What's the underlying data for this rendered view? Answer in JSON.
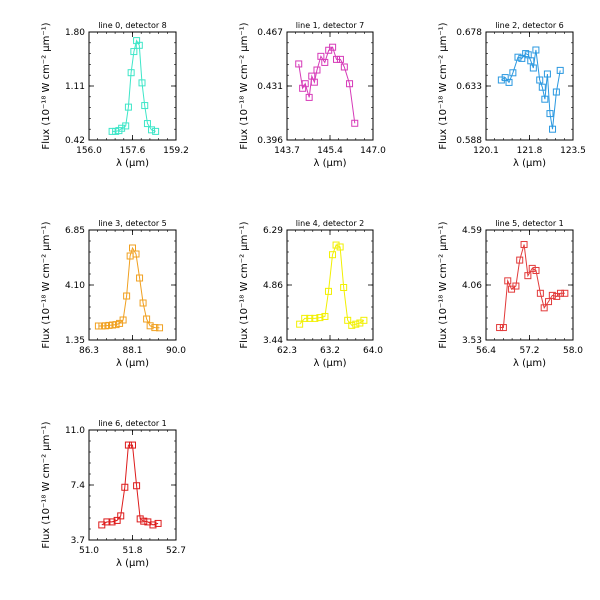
{
  "chart_data": [
    {
      "type": "line",
      "title": "line 0, detector 8",
      "xlabel": "λ (μm)",
      "ylabel": "Flux (10⁻¹⁸ W cm⁻² μm⁻¹)",
      "color": "#3ee6c8",
      "xlim": [
        156.0,
        159.2
      ],
      "ylim": [
        0.42,
        1.8
      ],
      "xticks": [
        "156.0",
        "157.6",
        "159.2"
      ],
      "yticks": [
        "0.42",
        "1.11",
        "1.80"
      ],
      "x": [
        156.85,
        156.98,
        157.1,
        157.2,
        157.35,
        157.45,
        157.55,
        157.65,
        157.75,
        157.85,
        157.95,
        158.05,
        158.15,
        158.3,
        158.45
      ],
      "y": [
        0.53,
        0.53,
        0.54,
        0.57,
        0.6,
        0.84,
        1.28,
        1.55,
        1.69,
        1.63,
        1.15,
        0.86,
        0.63,
        0.55,
        0.53
      ]
    },
    {
      "type": "line",
      "title": "line 1, detector 7",
      "xlabel": "λ (μm)",
      "ylabel": "Flux (10⁻¹⁸ W cm⁻² μm⁻¹)",
      "color": "#d63ab8",
      "xlim": [
        143.7,
        147.0
      ],
      "ylim": [
        0.396,
        0.467
      ],
      "xticks": [
        "143.7",
        "145.4",
        "147.0"
      ],
      "yticks": [
        "0.396",
        "0.431",
        "0.467"
      ],
      "x": [
        144.15,
        144.3,
        144.4,
        144.55,
        144.65,
        144.75,
        144.85,
        145.0,
        145.15,
        145.3,
        145.45,
        145.6,
        145.75,
        145.9,
        146.1,
        146.3
      ],
      "y": [
        0.446,
        0.43,
        0.433,
        0.424,
        0.438,
        0.434,
        0.442,
        0.451,
        0.447,
        0.455,
        0.457,
        0.449,
        0.449,
        0.444,
        0.433,
        0.407
      ]
    },
    {
      "type": "line",
      "title": "line 2, detector 6",
      "xlabel": "λ (μm)",
      "ylabel": "Flux (10⁻¹⁸ W cm⁻² μm⁻¹)",
      "color": "#2a98e0",
      "xlim": [
        120.1,
        123.5
      ],
      "ylim": [
        0.588,
        0.678
      ],
      "xticks": [
        "120.1",
        "121.8",
        "123.5"
      ],
      "yticks": [
        "0.588",
        "0.633",
        "0.678"
      ],
      "x": [
        120.7,
        120.85,
        121.0,
        121.15,
        121.35,
        121.5,
        121.65,
        121.75,
        121.85,
        121.95,
        122.05,
        122.2,
        122.3,
        122.4,
        122.5,
        122.6,
        122.7,
        122.85,
        123.0
      ],
      "y": [
        0.638,
        0.64,
        0.636,
        0.644,
        0.657,
        0.656,
        0.66,
        0.659,
        0.654,
        0.648,
        0.663,
        0.638,
        0.632,
        0.622,
        0.643,
        0.61,
        0.597,
        0.628,
        0.646
      ]
    },
    {
      "type": "line",
      "title": "line 3, detector 5",
      "xlabel": "λ (μm)",
      "ylabel": "Flux (10⁻¹⁸ W cm⁻² μm⁻¹)",
      "color": "#f0a020",
      "xlim": [
        86.3,
        90.0
      ],
      "ylim": [
        1.35,
        6.85
      ],
      "xticks": [
        "86.3",
        "88.1",
        "90.0"
      ],
      "yticks": [
        "1.35",
        "4.10",
        "6.85"
      ],
      "x": [
        86.7,
        86.85,
        87.0,
        87.15,
        87.3,
        87.45,
        87.6,
        87.75,
        87.9,
        88.05,
        88.15,
        88.3,
        88.45,
        88.6,
        88.75,
        88.9,
        89.1,
        89.3
      ],
      "y": [
        2.05,
        2.05,
        2.06,
        2.08,
        2.1,
        2.12,
        2.18,
        2.35,
        3.55,
        5.55,
        5.95,
        5.65,
        4.45,
        3.2,
        2.4,
        2.06,
        1.97,
        1.96
      ]
    },
    {
      "type": "line",
      "title": "line 4, detector 2",
      "xlabel": "λ (μm)",
      "ylabel": "Flux (10⁻¹⁸ W cm⁻² μm⁻¹)",
      "color": "#f2f000",
      "xlim": [
        62.3,
        64.0
      ],
      "ylim": [
        3.44,
        6.29
      ],
      "xticks": [
        "62.3",
        "63.2",
        "64.0"
      ],
      "yticks": [
        "3.44",
        "4.86",
        "6.29"
      ],
      "x": [
        62.55,
        62.65,
        62.75,
        62.85,
        62.95,
        63.05,
        63.12,
        63.2,
        63.27,
        63.35,
        63.42,
        63.5,
        63.58,
        63.66,
        63.74,
        63.82
      ],
      "y": [
        3.85,
        4.0,
        4.0,
        4.0,
        4.02,
        4.05,
        4.7,
        5.65,
        5.9,
        5.85,
        4.8,
        3.95,
        3.82,
        3.85,
        3.88,
        3.95
      ]
    },
    {
      "type": "line",
      "title": "line 5, detector 1",
      "xlabel": "λ (μm)",
      "ylabel": "Flux (10⁻¹⁸ W cm⁻² μm⁻¹)",
      "color": "#e23a3a",
      "xlim": [
        56.4,
        58.0
      ],
      "ylim": [
        3.53,
        4.59
      ],
      "xticks": [
        "56.4",
        "57.2",
        "58.0"
      ],
      "yticks": [
        "3.53",
        "4.06",
        "4.59"
      ],
      "x": [
        56.65,
        56.72,
        56.8,
        56.87,
        56.95,
        57.02,
        57.1,
        57.17,
        57.25,
        57.32,
        57.4,
        57.47,
        57.55,
        57.62,
        57.7,
        57.77,
        57.85
      ],
      "y": [
        3.65,
        3.65,
        4.1,
        4.02,
        4.05,
        4.3,
        4.45,
        4.15,
        4.22,
        4.2,
        3.98,
        3.84,
        3.9,
        3.96,
        3.95,
        3.98,
        3.98
      ]
    },
    {
      "type": "line",
      "title": "line 6, detector 1",
      "xlabel": "λ (μm)",
      "ylabel": "Flux (10⁻¹⁸ W cm⁻² μm⁻¹)",
      "color": "#dd1b1b",
      "xlim": [
        51.0,
        52.7
      ],
      "ylim": [
        3.7,
        11.0
      ],
      "xticks": [
        "51.0",
        "51.8",
        "52.7"
      ],
      "yticks": [
        "3.7",
        "7.4",
        "11.0"
      ],
      "x": [
        51.25,
        51.35,
        51.45,
        51.55,
        51.62,
        51.7,
        51.77,
        51.85,
        51.93,
        52.0,
        52.07,
        52.15,
        52.25,
        52.35
      ],
      "y": [
        4.7,
        4.9,
        4.9,
        5.0,
        5.3,
        7.2,
        10.0,
        10.0,
        7.3,
        5.1,
        4.95,
        4.9,
        4.7,
        4.8
      ]
    }
  ]
}
